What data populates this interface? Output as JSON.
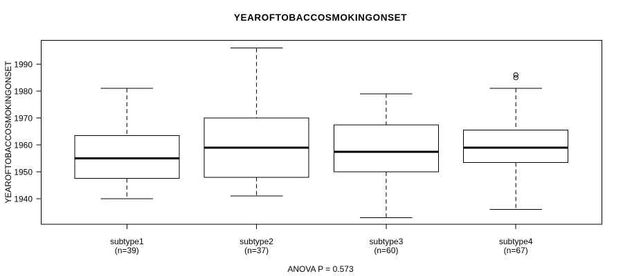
{
  "chart_data": {
    "type": "boxplot",
    "title": "YEAROFTOBACCOSMOKINGONSET",
    "ylabel": "YEAROFTOBACCOSMOKINGONSET",
    "annotation": "ANOVA P = 0.573",
    "ylim": [
      1930.5,
      1999
    ],
    "yticks": [
      1940,
      1950,
      1960,
      1970,
      1980,
      1990
    ],
    "grid": false,
    "legend_position": "none",
    "colors": {
      "stroke": "#000000",
      "box_fill": "#ffffff",
      "background": "#ffffff"
    },
    "groups": [
      {
        "label": "subtype1",
        "sublabel": "(n=39)",
        "n": 39,
        "whisker_low": 1940,
        "q1": 1947.5,
        "median": 1955,
        "q3": 1963.5,
        "whisker_high": 1981,
        "outliers": []
      },
      {
        "label": "subtype2",
        "sublabel": "(n=37)",
        "n": 37,
        "whisker_low": 1941,
        "q1": 1948,
        "median": 1959,
        "q3": 1970,
        "whisker_high": 1996,
        "outliers": []
      },
      {
        "label": "subtype3",
        "sublabel": "(n=60)",
        "n": 60,
        "whisker_low": 1933,
        "q1": 1950,
        "median": 1957.5,
        "q3": 1967.5,
        "whisker_high": 1979,
        "outliers": []
      },
      {
        "label": "subtype4",
        "sublabel": "(n=67)",
        "n": 67,
        "whisker_low": 1936,
        "q1": 1953.5,
        "median": 1959,
        "q3": 1965.5,
        "whisker_high": 1981,
        "outliers": [
          1985,
          1986
        ]
      }
    ]
  }
}
